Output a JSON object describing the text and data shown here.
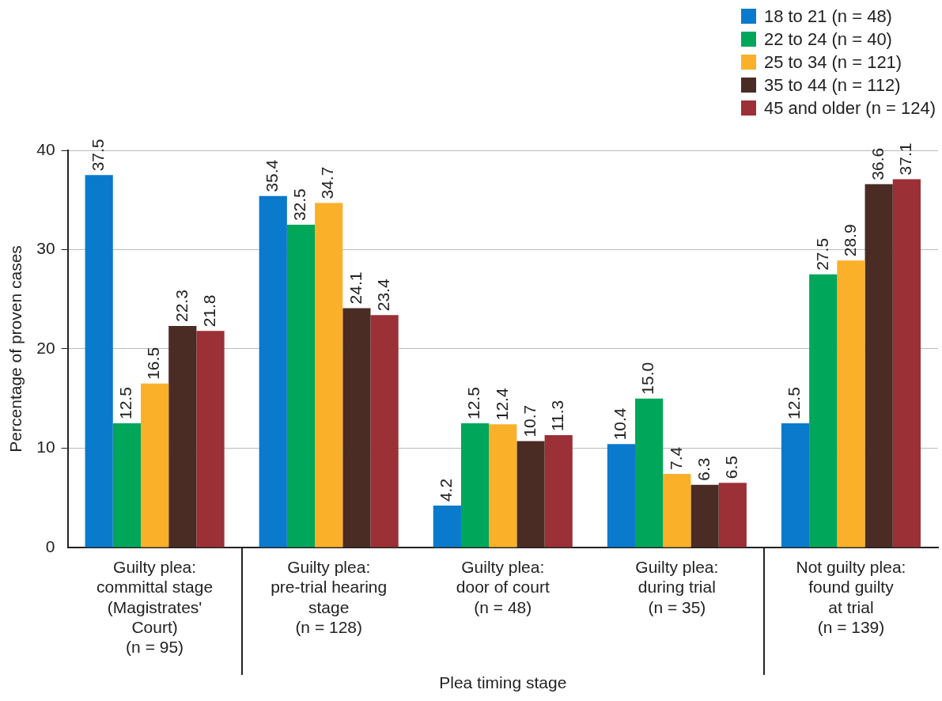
{
  "chart_data": {
    "type": "bar",
    "xlabel": "Plea timing stage",
    "ylabel": "Percentage of proven cases",
    "categories": [
      "Guilty plea:\ncommittal stage\n(Magistrates'\nCourt)\n(n = 95)",
      "Guilty plea:\npre-trial hearing\nstage\n(n = 128)",
      "Guilty plea:\ndoor of court\n(n = 48)",
      "Guilty plea:\nduring trial\n(n = 35)",
      "Not guilty plea:\nfound guilty\nat trial\n(n = 139)"
    ],
    "series": [
      {
        "name": "18 to 21 (n = 48)",
        "color": "#0a7acc",
        "values": [
          37.5,
          35.4,
          4.2,
          10.4,
          12.5
        ],
        "value_labels": [
          "37.5",
          "35.4",
          "4.2",
          "10.4",
          "12.5"
        ]
      },
      {
        "name": "22 to 24 (n = 40)",
        "color": "#00a65a",
        "values": [
          12.5,
          32.5,
          12.5,
          15.0,
          27.5
        ],
        "value_labels": [
          "12.5",
          "32.5",
          "12.5",
          "15.0",
          "27.5"
        ]
      },
      {
        "name": "25 to 34 (n = 121)",
        "color": "#fbb02a",
        "values": [
          16.5,
          34.7,
          12.4,
          7.4,
          28.9
        ],
        "value_labels": [
          "16.5",
          "34.7",
          "12.4",
          "7.4",
          "28.9"
        ]
      },
      {
        "name": "35 to 44 (n = 112)",
        "color": "#4a2c24",
        "values": [
          22.3,
          24.1,
          10.7,
          6.3,
          36.6
        ],
        "value_labels": [
          "22.3",
          "24.1",
          "10.7",
          "6.3",
          "36.6"
        ]
      },
      {
        "name": "45 and older (n = 124)",
        "color": "#9b3036",
        "values": [
          21.8,
          23.4,
          11.3,
          6.5,
          37.1
        ],
        "value_labels": [
          "21.8",
          "23.4",
          "11.3",
          "6.5",
          "37.1"
        ]
      }
    ],
    "ylim": [
      0,
      40
    ],
    "yticks": [
      0,
      10,
      20,
      30,
      40
    ],
    "grid": "y",
    "legend": "top right"
  }
}
